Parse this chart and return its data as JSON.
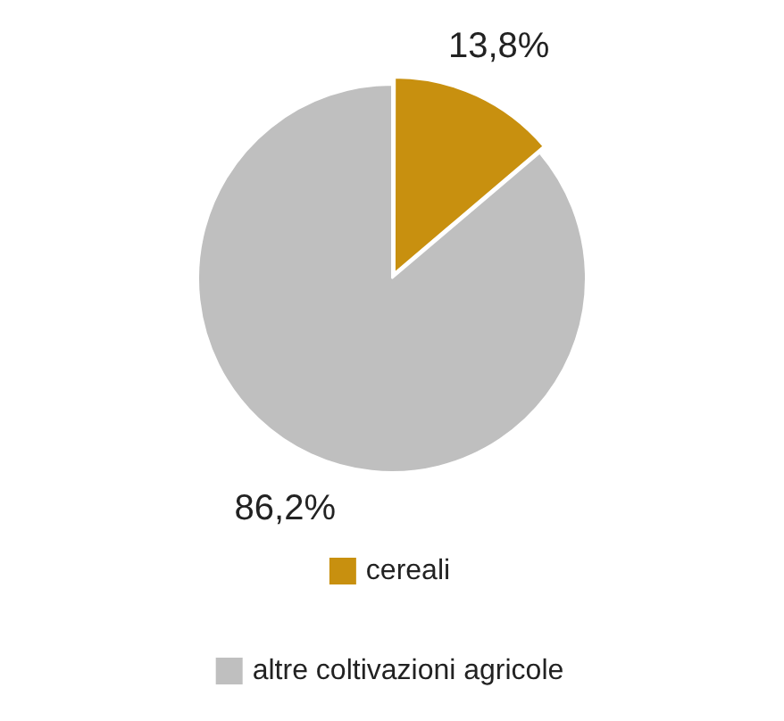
{
  "chart_data": {
    "type": "pie",
    "categories": [
      "cereali",
      "altre coltivazioni agricole"
    ],
    "values": [
      13.8,
      86.2
    ],
    "colors": [
      "#c8900f",
      "#bfbfbf"
    ],
    "value_labels": [
      "13,8%",
      "86,2%"
    ],
    "legend": "bottom"
  }
}
